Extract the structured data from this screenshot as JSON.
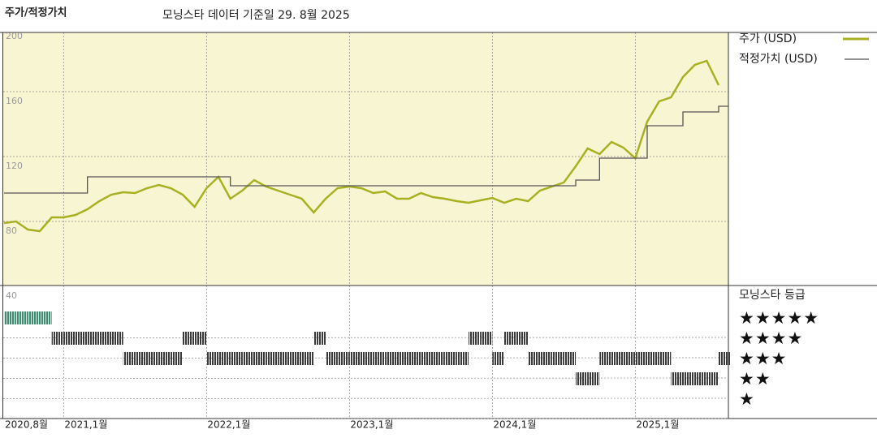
{
  "chart_data": {
    "type": "line",
    "title": "주가/적정가치",
    "subtitle": "모닝스타 데이터 기준일 29. 8월 2025",
    "x": [
      "2020-08",
      "2020-09",
      "2020-10",
      "2020-11",
      "2020-12",
      "2021-01",
      "2021-02",
      "2021-03",
      "2021-04",
      "2021-05",
      "2021-06",
      "2021-07",
      "2021-08",
      "2021-09",
      "2021-10",
      "2021-11",
      "2021-12",
      "2022-01",
      "2022-02",
      "2022-03",
      "2022-04",
      "2022-05",
      "2022-06",
      "2022-07",
      "2022-08",
      "2022-09",
      "2022-10",
      "2022-11",
      "2022-12",
      "2023-01",
      "2023-02",
      "2023-03",
      "2023-04",
      "2023-05",
      "2023-06",
      "2023-07",
      "2023-08",
      "2023-09",
      "2023-10",
      "2023-11",
      "2023-12",
      "2024-01",
      "2024-02",
      "2024-03",
      "2024-04",
      "2024-05",
      "2024-06",
      "2024-07",
      "2024-08",
      "2024-09",
      "2024-10",
      "2024-11",
      "2024-12",
      "2025-01",
      "2025-02",
      "2025-03",
      "2025-04",
      "2025-05",
      "2025-06",
      "2025-07",
      "2025-08"
    ],
    "xticks": [
      {
        "value": "2020-08",
        "label": "2020,8월"
      },
      {
        "value": "2021-01",
        "label": "2021,1월"
      },
      {
        "value": "2022-01",
        "label": "2022,1월"
      },
      {
        "value": "2023-01",
        "label": "2023,1월"
      },
      {
        "value": "2024-01",
        "label": "2024,1월"
      },
      {
        "value": "2025-01",
        "label": "2025,1월"
      }
    ],
    "ylim": [
      40,
      200
    ],
    "yticks": [
      40,
      80,
      120,
      160,
      200
    ],
    "grid": true,
    "series": [
      {
        "name": "주가 (USD)",
        "color": "#a8b021",
        "values": [
          79,
          80,
          75,
          74,
          82.5,
          82.5,
          84,
          87.5,
          92.5,
          96.5,
          98,
          97.5,
          100.5,
          102.5,
          100.5,
          96.5,
          89,
          100.5,
          107.5,
          94,
          99,
          105.5,
          101.5,
          99,
          96.5,
          94,
          85.5,
          94,
          100.5,
          101.5,
          100.5,
          97.5,
          98.5,
          94,
          94,
          97.5,
          95,
          94,
          92.5,
          91.5,
          93,
          94.5,
          91.5,
          94,
          92.5,
          99,
          101.5,
          104,
          114,
          125,
          121.5,
          129,
          125.5,
          119,
          141.5,
          154,
          156.5,
          169,
          176.5,
          179,
          164
        ]
      },
      {
        "name": "적정가치 (USD)",
        "color": "#555555",
        "values": [
          97.5,
          97.5,
          97.5,
          97.5,
          97.5,
          97.5,
          97.5,
          107.5,
          107.5,
          107.5,
          107.5,
          107.5,
          107.5,
          107.5,
          107.5,
          107.5,
          107.5,
          107.5,
          107.5,
          102,
          102,
          102,
          102,
          102,
          102,
          102,
          102,
          102,
          102,
          102,
          102,
          102,
          102,
          102,
          102,
          102,
          102,
          102,
          102,
          102,
          102,
          102,
          102,
          102,
          102,
          102,
          102,
          102,
          105.5,
          105.5,
          119,
          119,
          119,
          119,
          139,
          139,
          139,
          147.5,
          147.5,
          147.5,
          151
        ]
      }
    ],
    "rating_title": "모닝스타 등급",
    "rating_levels": [
      {
        "value": 5,
        "label": "★★★★★"
      },
      {
        "value": 4,
        "label": "★★★★"
      },
      {
        "value": 3,
        "label": "★★★"
      },
      {
        "value": 2,
        "label": "★★"
      },
      {
        "value": 1,
        "label": "★"
      }
    ],
    "ratings": [
      5,
      5,
      5,
      5,
      4,
      4,
      4,
      4,
      4,
      4,
      3,
      3,
      3,
      3,
      3,
      4,
      4,
      3,
      3,
      3,
      3,
      3,
      3,
      3,
      3,
      3,
      4,
      3,
      3,
      3,
      3,
      3,
      3,
      3,
      3,
      3,
      3,
      3,
      3,
      4,
      4,
      3,
      4,
      4,
      3,
      3,
      3,
      3,
      2,
      2,
      3,
      3,
      3,
      3,
      3,
      3,
      2,
      2,
      2,
      2,
      3
    ],
    "rating_color": "#3b3b3b",
    "top_rating_color": "#3f8c73"
  }
}
